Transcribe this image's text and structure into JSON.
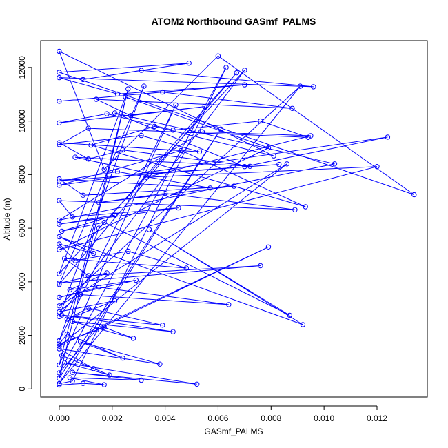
{
  "chart_data": {
    "type": "scatter",
    "title": "ATOM2 Northbound GASmf_PALMS",
    "xlabel": "GASmf_PALMS",
    "ylabel": "Altitude (m)",
    "xlim": [
      -0.0007,
      0.0139
    ],
    "ylim": [
      -300,
      13000
    ],
    "x_ticks": [
      0.0,
      0.002,
      0.004,
      0.006,
      0.008,
      0.01,
      0.012
    ],
    "x_tick_labels": [
      "0.000",
      "0.002",
      "0.004",
      "0.006",
      "0.008",
      "0.010",
      "0.012"
    ],
    "y_ticks": [
      0,
      2000,
      4000,
      6000,
      8000,
      10000,
      12000
    ],
    "y_tick_labels": [
      "0",
      "2000",
      "4000",
      "6000",
      "8000",
      "10000",
      "12000"
    ],
    "grid": false,
    "legend": "none",
    "style": "points connected by lines",
    "color": "#0000ff",
    "series": [
      {
        "x": [
          0.0,
          0.0009,
          0.0017,
          0.0004,
          0.0031,
          0.0005,
          0.0052,
          0.0002,
          0.0019,
          0.0001,
          0.0013,
          0.0,
          0.0038,
          0.0008,
          0.0024,
          0.0003,
          0.0,
          0.0017,
          0.0028,
          0.0005,
          0.0043,
          0.0001,
          0.0039,
          0.0011,
          0.0003,
          0.0021,
          0.0,
          0.0008,
          0.0064,
          0.0015,
          0.0,
          0.0029,
          0.0004,
          0.0018,
          0.0,
          0.0076,
          0.0011,
          0.0002,
          0.0048,
          0.0026,
          0.0006,
          0.0,
          0.0013,
          0.0,
          0.0092,
          0.0034,
          0.0087,
          0.0017,
          0.0001,
          0.0021,
          0.0,
          0.0045,
          0.0005,
          0.0,
          0.0089,
          0.004,
          0.0015,
          0.0066,
          0.0009,
          0.0,
          0.0057,
          0.0022,
          0.0,
          0.0083,
          0.0034,
          0.0006,
          0.0072,
          0.0024,
          0.0011,
          0.0,
          0.0053,
          0.0031,
          0.0,
          0.0011,
          0.0094,
          0.0076,
          0.0043,
          0.0018,
          0.0,
          0.0055,
          0.0027,
          0.0014,
          0.0088,
          0.0039,
          0.0,
          0.007,
          0.0022,
          0.0,
          0.0096,
          0.0031,
          0.0009,
          0.0049,
          0.0,
          0.0134,
          0.006,
          0.0017,
          0.0,
          0.0081,
          0.0036,
          0.0012,
          0.0093,
          0.0046,
          0.0,
          0.0124,
          0.007,
          0.0021,
          0.0104,
          0.0,
          0.0054,
          0.0095,
          0.0033,
          0.012,
          0.0,
          0.0079,
          0.0025,
          0.0,
          0.0067,
          0.0,
          0.0032,
          0.0,
          0.007,
          0.0015,
          0.0,
          0.0044,
          0.0,
          0.0026,
          0.0,
          0.0061,
          0.0,
          0.0091,
          0.0,
          0.0086,
          0.0,
          0.0079,
          0.0014,
          0.0,
          0.0063,
          0.0005,
          0.0
        ],
        "y": [
          150,
          210,
          160,
          420,
          330,
          620,
          180,
          980,
          520,
          1250,
          760,
          1500,
          930,
          1760,
          1150,
          2050,
          1680,
          2300,
          1890,
          2520,
          2140,
          2760,
          2380,
          3020,
          2610,
          3290,
          2880,
          3520,
          3150,
          3800,
          3420,
          4060,
          3700,
          4330,
          3950,
          4600,
          4230,
          4870,
          4510,
          5140,
          4790,
          5410,
          5060,
          5680,
          2400,
          5950,
          2750,
          6220,
          5890,
          6490,
          6150,
          6760,
          6420,
          7030,
          6690,
          7300,
          6960,
          7570,
          7230,
          7840,
          7500,
          8110,
          7770,
          8380,
          8040,
          8650,
          8310,
          8920,
          8580,
          9190,
          8850,
          9460,
          9120,
          9730,
          9390,
          10000,
          9660,
          10270,
          9930,
          10540,
          10200,
          10810,
          10470,
          11080,
          10740,
          11350,
          11010,
          11620,
          11280,
          11890,
          11550,
          12160,
          11820,
          7250,
          12430,
          8200,
          12600,
          8700,
          9800,
          9100,
          6800,
          8900,
          7600,
          9400,
          8300,
          10300,
          8400,
          6300,
          9600,
          9450,
          7900,
          8300,
          5200,
          9000,
          10900,
          4300,
          11800,
          3900,
          11300,
          2700,
          11900,
          6000,
          1800,
          10600,
          900,
          11200,
          400,
          9700,
          200,
          11300,
          3100,
          8400,
          1600,
          5300,
          2200,
          600,
          12000,
          300,
          200
        ]
      }
    ]
  }
}
